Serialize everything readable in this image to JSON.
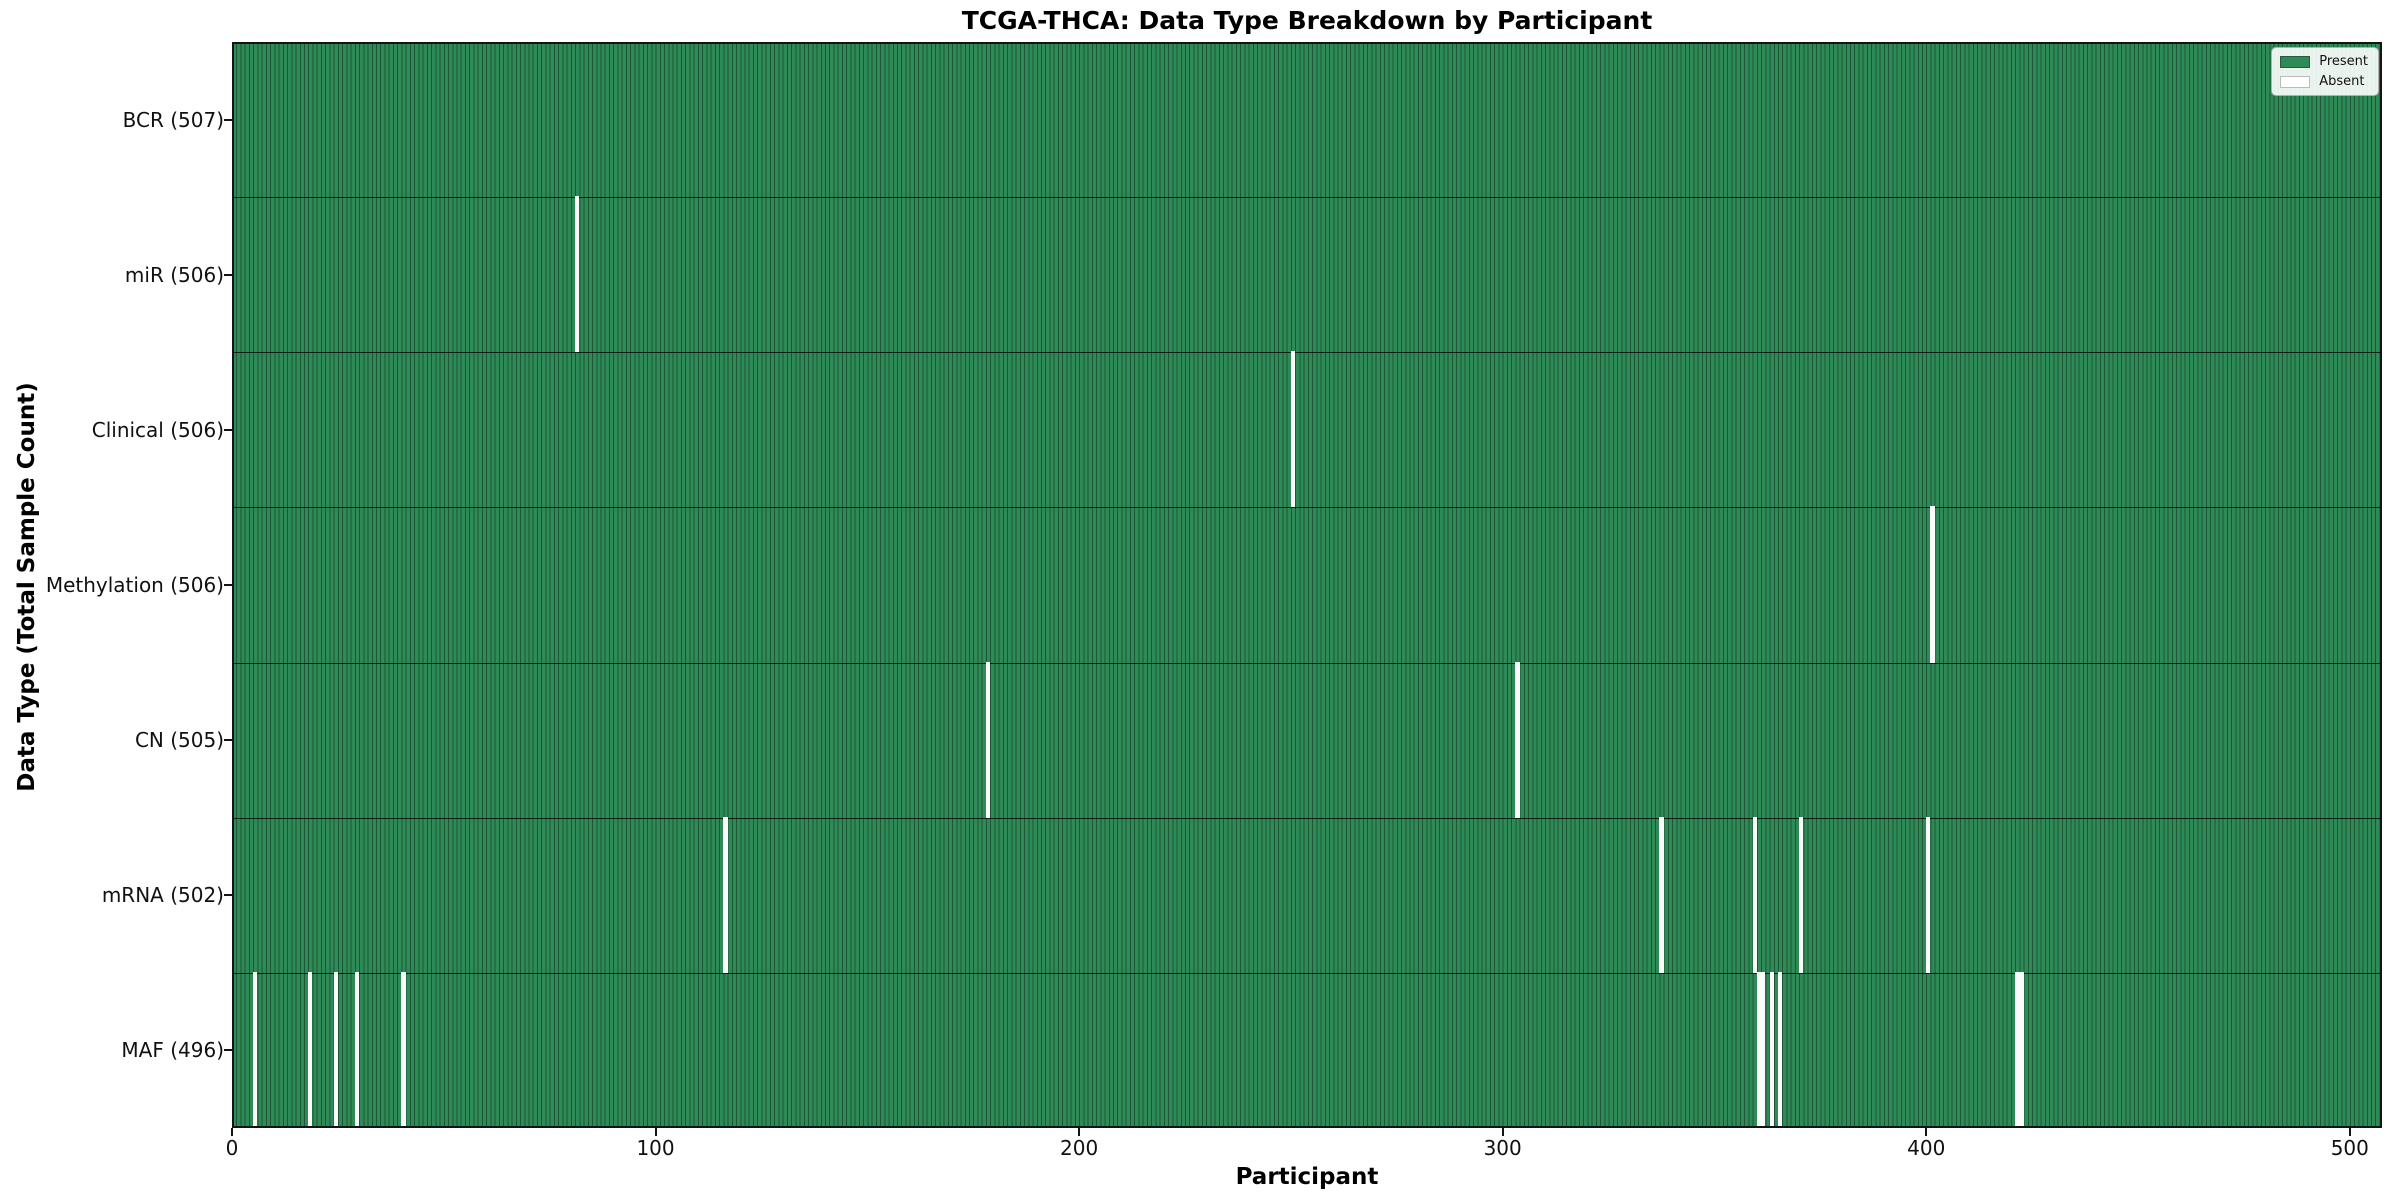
{
  "chart_data": {
    "type": "heatmap",
    "title": "TCGA-THCA: Data Type Breakdown by Participant",
    "xlabel": "Participant",
    "ylabel": "Data Type (Total Sample Count)",
    "n_participants": 507,
    "xlim": [
      0,
      507.6
    ],
    "x_ticks": [
      0,
      100,
      200,
      300,
      400,
      500
    ],
    "grid": false,
    "legend_position": "upper right",
    "legend": [
      {
        "label": "Present",
        "type": "present"
      },
      {
        "label": "Absent",
        "type": "absent"
      }
    ],
    "rows": [
      {
        "label": "BCR (507)",
        "data_type": "BCR",
        "total_sample_count": 507,
        "absent_participants": []
      },
      {
        "label": "miR (506)",
        "data_type": "miR",
        "total_sample_count": 506,
        "absent_participants": [
          81
        ]
      },
      {
        "label": "Clinical (506)",
        "data_type": "Clinical",
        "total_sample_count": 506,
        "absent_participants": [
          250
        ]
      },
      {
        "label": "Methylation (506)",
        "data_type": "Methylation",
        "total_sample_count": 506,
        "absent_participants": [
          401
        ]
      },
      {
        "label": "CN (505)",
        "data_type": "CN",
        "total_sample_count": 505,
        "absent_participants": [
          178,
          303
        ]
      },
      {
        "label": "mRNA (502)",
        "data_type": "mRNA",
        "total_sample_count": 502,
        "absent_participants": [
          116,
          337,
          359,
          370,
          400
        ]
      },
      {
        "label": "MAF (496)",
        "data_type": "MAF",
        "total_sample_count": 496,
        "absent_participants": [
          5,
          18,
          24,
          29,
          40,
          360,
          361,
          363,
          365,
          421,
          422
        ]
      }
    ],
    "colors": {
      "present_fill": "#2e8b57",
      "bar_edge": "#1d5635",
      "absent_fill": "#fbfbfb",
      "row_divider": "rgba(0,0,0,0.75)",
      "swatch_present_border": "#2a5a3e",
      "swatch_absent_border": "#bbbbbb"
    }
  }
}
